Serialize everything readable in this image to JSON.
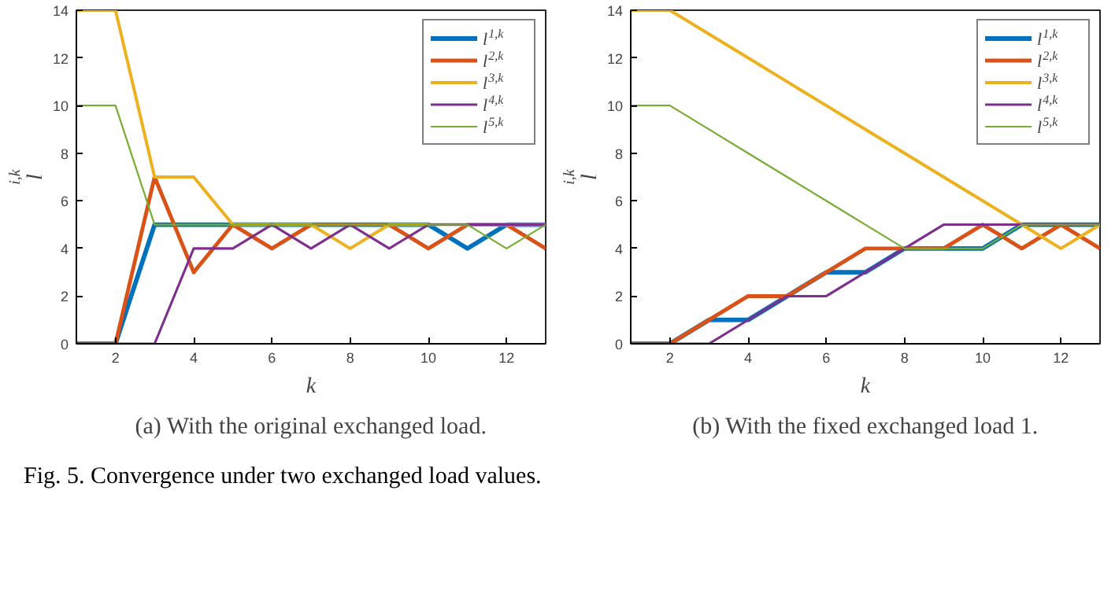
{
  "chart_data": [
    {
      "type": "line",
      "title": "(a) With the original exchanged load.",
      "xlabel": "k",
      "ylabel": "l$^{i,k}$",
      "x": [
        1,
        2,
        3,
        4,
        5,
        6,
        7,
        8,
        9,
        10,
        11,
        12,
        13
      ],
      "xlim": [
        1,
        13
      ],
      "xticks": [
        2,
        4,
        6,
        8,
        10,
        12
      ],
      "ylim": [
        0,
        14
      ],
      "yticks": [
        0,
        2,
        4,
        6,
        8,
        10,
        12,
        14
      ],
      "legend": "top right",
      "grid": false,
      "series": [
        {
          "name": "l$^{1,k}$",
          "color": "#0072bd",
          "values": [
            0,
            0,
            5,
            5,
            5,
            5,
            5,
            5,
            5,
            5,
            4,
            5,
            5
          ]
        },
        {
          "name": "l$^{2,k}$",
          "color": "#d95319",
          "values": [
            0,
            0,
            7,
            3,
            5,
            4,
            5,
            5,
            5,
            4,
            5,
            5,
            4
          ]
        },
        {
          "name": "l$^{3,k}$",
          "color": "#edb120",
          "values": [
            14,
            14,
            7,
            7,
            5,
            5,
            5,
            4,
            5,
            5,
            5,
            5,
            5
          ]
        },
        {
          "name": "l$^{4,k}$",
          "color": "#7e2f8e",
          "values": [
            0,
            0,
            0,
            4,
            4,
            5,
            4,
            5,
            4,
            5,
            5,
            5,
            5
          ]
        },
        {
          "name": "l$^{5,k}$",
          "color": "#77ac30",
          "values": [
            10,
            10,
            5,
            5,
            5,
            5,
            5,
            5,
            5,
            5,
            5,
            4,
            5
          ]
        }
      ],
      "annotations": [
        "Fig. 5.  Convergence under two exchanged load values."
      ]
    },
    {
      "type": "line",
      "title": "(b) With the fixed exchanged load 1.",
      "xlabel": "k",
      "ylabel": "l$^{i,k}$",
      "x": [
        1,
        2,
        3,
        4,
        5,
        6,
        7,
        8,
        9,
        10,
        11,
        12,
        13
      ],
      "xlim": [
        1,
        13
      ],
      "xticks": [
        2,
        4,
        6,
        8,
        10,
        12
      ],
      "ylim": [
        0,
        14
      ],
      "yticks": [
        0,
        2,
        4,
        6,
        8,
        10,
        12,
        14
      ],
      "legend": "top right",
      "grid": false,
      "series": [
        {
          "name": "l$^{1,k}$",
          "color": "#0072bd",
          "values": [
            0,
            0,
            1,
            1,
            2,
            3,
            3,
            4,
            4,
            4,
            5,
            5,
            5
          ]
        },
        {
          "name": "l$^{2,k}$",
          "color": "#d95319",
          "values": [
            0,
            0,
            1,
            2,
            2,
            3,
            4,
            4,
            4,
            5,
            4,
            5,
            4
          ]
        },
        {
          "name": "l$^{3,k}$",
          "color": "#edb120",
          "values": [
            14,
            14,
            13,
            12,
            11,
            10,
            9,
            8,
            7,
            6,
            5,
            4,
            5
          ]
        },
        {
          "name": "l$^{4,k}$",
          "color": "#7e2f8e",
          "values": [
            0,
            0,
            0,
            1,
            2,
            2,
            3,
            4,
            5,
            5,
            5,
            5,
            5
          ]
        },
        {
          "name": "l$^{5,k}$",
          "color": "#77ac30",
          "values": [
            10,
            10,
            9,
            8,
            7,
            6,
            5,
            4,
            4,
            4,
            5,
            5,
            5
          ]
        }
      ]
    }
  ]
}
